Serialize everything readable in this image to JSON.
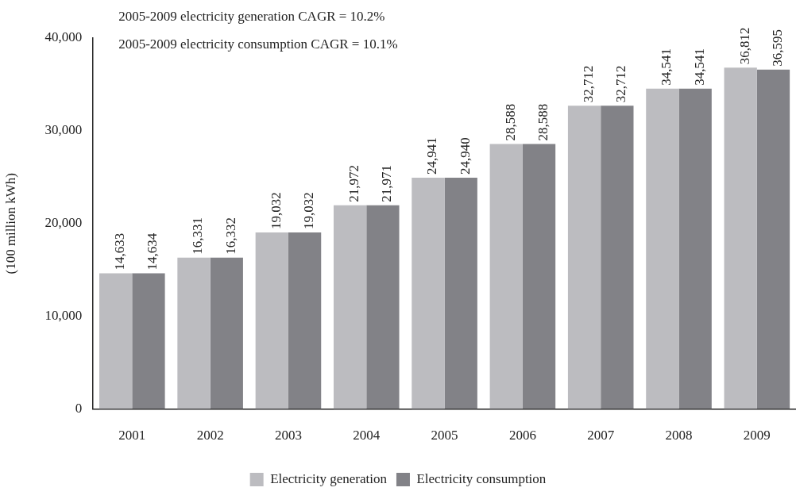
{
  "chart_data": {
    "type": "bar",
    "ylabel": "(100 million kWh)",
    "annotations": [
      "2005-2009 electricity generation CAGR = 10.2%",
      "2005-2009 electricity consumption CAGR = 10.1%"
    ],
    "categories": [
      "2001",
      "2002",
      "2003",
      "2004",
      "2005",
      "2006",
      "2007",
      "2008",
      "2009"
    ],
    "series": [
      {
        "name": "Electricity generation",
        "color": "#bcbcc0",
        "values": [
          14633,
          16331,
          19032,
          21972,
          24941,
          28588,
          32712,
          34541,
          36812
        ],
        "value_labels": [
          "14,633",
          "16,331",
          "19,032",
          "21,972",
          "24,941",
          "28,588",
          "32,712",
          "34,541",
          "36,812"
        ]
      },
      {
        "name": "Electricity consumption",
        "color": "#828287",
        "values": [
          14634,
          16332,
          19032,
          21971,
          24940,
          28588,
          32712,
          34541,
          36595
        ],
        "value_labels": [
          "14,634",
          "16,332",
          "19,032",
          "21,971",
          "24,940",
          "28,588",
          "32,712",
          "34,541",
          "36,595"
        ]
      }
    ],
    "ylim": [
      0,
      40000
    ],
    "yticks": [
      {
        "value": 0,
        "label": "0"
      },
      {
        "value": 10000,
        "label": "10,000"
      },
      {
        "value": 20000,
        "label": "20,000"
      },
      {
        "value": 30000,
        "label": "30,000"
      },
      {
        "value": 40000,
        "label": "40,000"
      }
    ],
    "grid": false,
    "legend": "bottom"
  }
}
